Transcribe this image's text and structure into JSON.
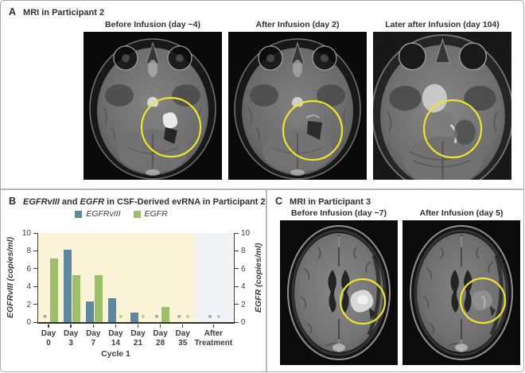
{
  "panel_a": {
    "label": "A",
    "title": "MRI in Participant 2",
    "captions": [
      "Before Infusion (day −4)",
      "After Infusion (day 2)",
      "Later after Infusion (day 104)"
    ]
  },
  "panel_b": {
    "label": "B",
    "title": {
      "gene1": "EGFRvIII",
      "mid": " and ",
      "gene2": "EGFR",
      "rest": " in CSF-Derived evRNA in Participant 2"
    },
    "legend": [
      {
        "label": "EGFRvIII",
        "color": "#5e88a0"
      },
      {
        "label": "EGFR",
        "color": "#9cbf69"
      }
    ]
  },
  "panel_c": {
    "label": "C",
    "title": "MRI in Participant 3",
    "captions": [
      "Before Infusion (day −7)",
      "After Infusion (day 5)"
    ]
  },
  "chart_data": {
    "type": "bar",
    "title": "EGFRvIII and EGFR in CSF-Derived evRNA in Participant 2",
    "categories": [
      [
        "Day",
        "0"
      ],
      [
        "Day",
        "3"
      ],
      [
        "Day",
        "7"
      ],
      [
        "Day",
        "14"
      ],
      [
        "Day",
        "21"
      ],
      [
        "Day",
        "28"
      ],
      [
        "Day",
        "35"
      ],
      [
        "After",
        "Treatment"
      ]
    ],
    "series": [
      {
        "name": "EGFRvIII",
        "axis": "left",
        "color": "#5e88a0",
        "values": [
          null,
          8.1,
          2.3,
          2.7,
          1.1,
          null,
          null,
          null
        ]
      },
      {
        "name": "EGFR",
        "axis": "right",
        "color": "#9cbf69",
        "values": [
          7.1,
          5.3,
          5.3,
          null,
          null,
          1.7,
          null,
          null
        ]
      }
    ],
    "below_detection_marker": "*",
    "ylim": [
      0,
      10
    ],
    "yticks": [
      0,
      2,
      4,
      6,
      8,
      10
    ],
    "ylabel_left": "EGFRvIII (copies/ml)",
    "ylabel_right": "EGFR (copies/ml)",
    "xlabel_cycle": "Cycle 1",
    "zones": [
      {
        "name": "Cycle 1",
        "bg": "#fbf3d8"
      },
      {
        "name": "After Treatment",
        "bg": "#f2f3f6"
      }
    ],
    "legend_position": "top",
    "annotation_color": "#efe32e"
  }
}
